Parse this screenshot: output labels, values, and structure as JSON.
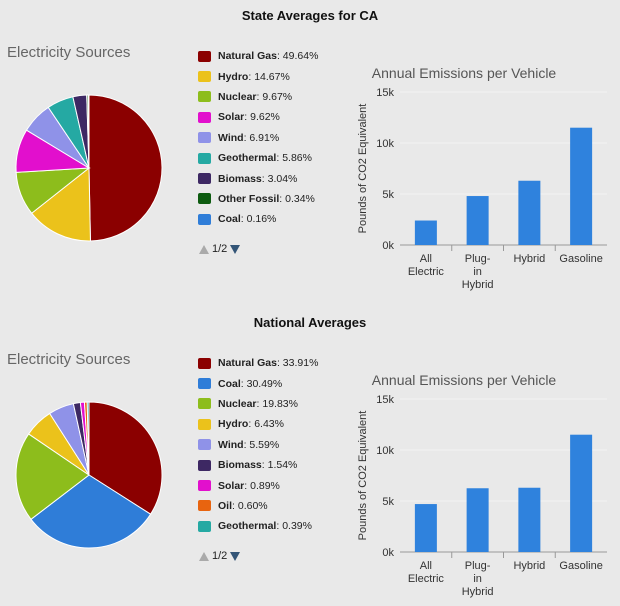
{
  "chart_data": [
    {
      "type": "pie",
      "section_title": "State Averages for CA",
      "title": "Electricity Sources",
      "slices": [
        {
          "name": "Natural Gas",
          "label": "49.64%",
          "value": 49.64,
          "color": "#8b0000"
        },
        {
          "name": "Hydro",
          "label": "14.67%",
          "value": 14.67,
          "color": "#ebc21b"
        },
        {
          "name": "Nuclear",
          "label": "9.67%",
          "value": 9.67,
          "color": "#8dbd1c"
        },
        {
          "name": "Solar",
          "label": "9.62%",
          "value": 9.62,
          "color": "#e20fcd"
        },
        {
          "name": "Wind",
          "label": "6.91%",
          "value": 6.91,
          "color": "#8f92e8"
        },
        {
          "name": "Geothermal",
          "label": "5.86%",
          "value": 5.86,
          "color": "#25a9a3"
        },
        {
          "name": "Biomass",
          "label": "3.04%",
          "value": 3.04,
          "color": "#3d2863"
        },
        {
          "name": "Other Fossil",
          "label": "0.34%",
          "value": 0.34,
          "color": "#0d5b10"
        },
        {
          "name": "Coal",
          "label": "0.16%",
          "value": 0.16,
          "color": "#2f7dd8"
        }
      ],
      "pager": "1/2"
    },
    {
      "type": "bar",
      "title": "Annual Emissions per Vehicle",
      "ylabel": "Pounds of CO2 Equivalent",
      "ylim": [
        0,
        15000
      ],
      "yticks": [
        {
          "v": 0,
          "label": "0k"
        },
        {
          "v": 5000,
          "label": "5k"
        },
        {
          "v": 10000,
          "label": "10k"
        },
        {
          "v": 15000,
          "label": "15k"
        }
      ],
      "categories": [
        [
          "All",
          "Electric"
        ],
        [
          "Plug-",
          "in",
          "Hybrid"
        ],
        [
          "Hybrid"
        ],
        [
          "Gasoline"
        ]
      ],
      "values": [
        2400,
        4800,
        6300,
        11500
      ],
      "color": "#2f82dd"
    },
    {
      "type": "pie",
      "section_title": "National Averages",
      "title": "Electricity Sources",
      "slices": [
        {
          "name": "Natural Gas",
          "label": "33.91%",
          "value": 33.91,
          "color": "#8b0000"
        },
        {
          "name": "Coal",
          "label": "30.49%",
          "value": 30.49,
          "color": "#2f7dd8"
        },
        {
          "name": "Nuclear",
          "label": "19.83%",
          "value": 19.83,
          "color": "#8dbd1c"
        },
        {
          "name": "Hydro",
          "label": "6.43%",
          "value": 6.43,
          "color": "#ebc21b"
        },
        {
          "name": "Wind",
          "label": "5.59%",
          "value": 5.59,
          "color": "#8f92e8"
        },
        {
          "name": "Biomass",
          "label": "1.54%",
          "value": 1.54,
          "color": "#3d2863"
        },
        {
          "name": "Solar",
          "label": "0.89%",
          "value": 0.89,
          "color": "#e20fcd"
        },
        {
          "name": "Oil",
          "label": "0.60%",
          "value": 0.6,
          "color": "#e8640f"
        },
        {
          "name": "Geothermal",
          "label": "0.39%",
          "value": 0.39,
          "color": "#25a9a3"
        }
      ],
      "pager": "1/2"
    },
    {
      "type": "bar",
      "title": "Annual Emissions per Vehicle",
      "ylabel": "Pounds of CO2 Equivalent",
      "ylim": [
        0,
        15000
      ],
      "yticks": [
        {
          "v": 0,
          "label": "0k"
        },
        {
          "v": 5000,
          "label": "5k"
        },
        {
          "v": 10000,
          "label": "10k"
        },
        {
          "v": 15000,
          "label": "15k"
        }
      ],
      "categories": [
        [
          "All",
          "Electric"
        ],
        [
          "Plug-",
          "in",
          "Hybrid"
        ],
        [
          "Hybrid"
        ],
        [
          "Gasoline"
        ]
      ],
      "values": [
        4700,
        6250,
        6300,
        11500
      ],
      "color": "#2f82dd"
    }
  ]
}
